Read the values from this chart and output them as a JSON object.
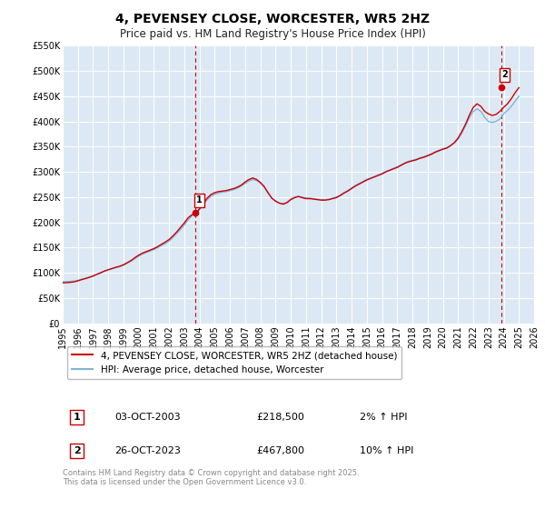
{
  "title": "4, PEVENSEY CLOSE, WORCESTER, WR5 2HZ",
  "subtitle": "Price paid vs. HM Land Registry's House Price Index (HPI)",
  "background_color": "#ffffff",
  "plot_bg_color": "#dce9f5",
  "grid_color": "#ffffff",
  "hpi_color": "#7fb3d9",
  "price_color": "#cc0000",
  "ylim": [
    0,
    550000
  ],
  "xlim_start": 1995.0,
  "xlim_end": 2026.0,
  "yticks": [
    0,
    50000,
    100000,
    150000,
    200000,
    250000,
    300000,
    350000,
    400000,
    450000,
    500000,
    550000
  ],
  "ytick_labels": [
    "£0",
    "£50K",
    "£100K",
    "£150K",
    "£200K",
    "£250K",
    "£300K",
    "£350K",
    "£400K",
    "£450K",
    "£500K",
    "£550K"
  ],
  "xticks": [
    1995,
    1996,
    1997,
    1998,
    1999,
    2000,
    2001,
    2002,
    2003,
    2004,
    2005,
    2006,
    2007,
    2008,
    2009,
    2010,
    2011,
    2012,
    2013,
    2014,
    2015,
    2016,
    2017,
    2018,
    2019,
    2020,
    2021,
    2022,
    2023,
    2024,
    2025,
    2026
  ],
  "sale1_x": 2003.75,
  "sale1_y": 218500,
  "sale1_label": "1",
  "sale2_x": 2023.82,
  "sale2_y": 467800,
  "sale2_label": "2",
  "vline1_x": 2003.75,
  "vline2_x": 2023.82,
  "legend_line1": "4, PEVENSEY CLOSE, WORCESTER, WR5 2HZ (detached house)",
  "legend_line2": "HPI: Average price, detached house, Worcester",
  "table_row1_num": "1",
  "table_row1_date": "03-OCT-2003",
  "table_row1_price": "£218,500",
  "table_row1_hpi": "2% ↑ HPI",
  "table_row2_num": "2",
  "table_row2_date": "26-OCT-2023",
  "table_row2_price": "£467,800",
  "table_row2_hpi": "10% ↑ HPI",
  "footer": "Contains HM Land Registry data © Crown copyright and database right 2025.\nThis data is licensed under the Open Government Licence v3.0.",
  "title_fontsize": 10,
  "subtitle_fontsize": 8.5,
  "tick_fontsize": 7,
  "legend_fontsize": 7.5,
  "table_fontsize": 8,
  "footer_fontsize": 6,
  "hpi_data_x": [
    1995.0,
    1995.25,
    1995.5,
    1995.75,
    1996.0,
    1996.25,
    1996.5,
    1996.75,
    1997.0,
    1997.25,
    1997.5,
    1997.75,
    1998.0,
    1998.25,
    1998.5,
    1998.75,
    1999.0,
    1999.25,
    1999.5,
    1999.75,
    2000.0,
    2000.25,
    2000.5,
    2000.75,
    2001.0,
    2001.25,
    2001.5,
    2001.75,
    2002.0,
    2002.25,
    2002.5,
    2002.75,
    2003.0,
    2003.25,
    2003.5,
    2003.75,
    2004.0,
    2004.25,
    2004.5,
    2004.75,
    2005.0,
    2005.25,
    2005.5,
    2005.75,
    2006.0,
    2006.25,
    2006.5,
    2006.75,
    2007.0,
    2007.25,
    2007.5,
    2007.75,
    2008.0,
    2008.25,
    2008.5,
    2008.75,
    2009.0,
    2009.25,
    2009.5,
    2009.75,
    2010.0,
    2010.25,
    2010.5,
    2010.75,
    2011.0,
    2011.25,
    2011.5,
    2011.75,
    2012.0,
    2012.25,
    2012.5,
    2012.75,
    2013.0,
    2013.25,
    2013.5,
    2013.75,
    2014.0,
    2014.25,
    2014.5,
    2014.75,
    2015.0,
    2015.25,
    2015.5,
    2015.75,
    2016.0,
    2016.25,
    2016.5,
    2016.75,
    2017.0,
    2017.25,
    2017.5,
    2017.75,
    2018.0,
    2018.25,
    2018.5,
    2018.75,
    2019.0,
    2019.25,
    2019.5,
    2019.75,
    2020.0,
    2020.25,
    2020.5,
    2020.75,
    2021.0,
    2021.25,
    2021.5,
    2021.75,
    2022.0,
    2022.25,
    2022.5,
    2022.75,
    2023.0,
    2023.25,
    2023.5,
    2023.75,
    2024.0,
    2024.25,
    2024.5,
    2024.75,
    2025.0
  ],
  "hpi_data_y": [
    82000,
    82500,
    83000,
    83500,
    85000,
    87000,
    89000,
    91000,
    94000,
    97000,
    100000,
    103000,
    106000,
    108000,
    110000,
    112000,
    115000,
    119000,
    123000,
    128000,
    133000,
    137000,
    140000,
    143000,
    146000,
    150000,
    154000,
    158000,
    163000,
    170000,
    178000,
    186000,
    195000,
    205000,
    213000,
    218000,
    225000,
    235000,
    245000,
    252000,
    256000,
    258000,
    260000,
    261000,
    263000,
    265000,
    268000,
    272000,
    277000,
    282000,
    285000,
    283000,
    278000,
    270000,
    258000,
    248000,
    242000,
    238000,
    237000,
    240000,
    246000,
    250000,
    252000,
    250000,
    248000,
    248000,
    247000,
    246000,
    245000,
    245000,
    246000,
    248000,
    250000,
    254000,
    259000,
    263000,
    268000,
    273000,
    277000,
    281000,
    285000,
    288000,
    291000,
    294000,
    297000,
    301000,
    304000,
    307000,
    310000,
    314000,
    318000,
    321000,
    323000,
    325000,
    328000,
    330000,
    333000,
    336000,
    340000,
    343000,
    346000,
    348000,
    352000,
    357000,
    365000,
    377000,
    392000,
    408000,
    420000,
    425000,
    420000,
    408000,
    400000,
    398000,
    400000,
    405000,
    415000,
    422000,
    430000,
    440000,
    450000
  ],
  "price_data_x": [
    1995.0,
    1995.25,
    1995.5,
    1995.75,
    1996.0,
    1996.25,
    1996.5,
    1996.75,
    1997.0,
    1997.25,
    1997.5,
    1997.75,
    1998.0,
    1998.25,
    1998.5,
    1998.75,
    1999.0,
    1999.25,
    1999.5,
    1999.75,
    2000.0,
    2000.25,
    2000.5,
    2000.75,
    2001.0,
    2001.25,
    2001.5,
    2001.75,
    2002.0,
    2002.25,
    2002.5,
    2002.75,
    2003.0,
    2003.25,
    2003.5,
    2003.75,
    2004.0,
    2004.25,
    2004.5,
    2004.75,
    2005.0,
    2005.25,
    2005.5,
    2005.75,
    2006.0,
    2006.25,
    2006.5,
    2006.75,
    2007.0,
    2007.25,
    2007.5,
    2007.75,
    2008.0,
    2008.25,
    2008.5,
    2008.75,
    2009.0,
    2009.25,
    2009.5,
    2009.75,
    2010.0,
    2010.25,
    2010.5,
    2010.75,
    2011.0,
    2011.25,
    2011.5,
    2011.75,
    2012.0,
    2012.25,
    2012.5,
    2012.75,
    2013.0,
    2013.25,
    2013.5,
    2013.75,
    2014.0,
    2014.25,
    2014.5,
    2014.75,
    2015.0,
    2015.25,
    2015.5,
    2015.75,
    2016.0,
    2016.25,
    2016.5,
    2016.75,
    2017.0,
    2017.25,
    2017.5,
    2017.75,
    2018.0,
    2018.25,
    2018.5,
    2018.75,
    2019.0,
    2019.25,
    2019.5,
    2019.75,
    2020.0,
    2020.25,
    2020.5,
    2020.75,
    2021.0,
    2021.25,
    2021.5,
    2021.75,
    2022.0,
    2022.25,
    2022.5,
    2022.75,
    2023.0,
    2023.25,
    2023.5,
    2023.75,
    2024.0,
    2024.25,
    2024.5,
    2024.75,
    2025.0
  ],
  "price_data_y": [
    80000,
    80500,
    81000,
    82000,
    84000,
    86500,
    88500,
    91000,
    93500,
    97000,
    100000,
    103500,
    106000,
    108500,
    111000,
    113000,
    116000,
    120000,
    124500,
    130000,
    135000,
    139000,
    142000,
    145000,
    148000,
    152000,
    156500,
    161000,
    166000,
    173000,
    181000,
    190000,
    199000,
    209000,
    215000,
    218500,
    227000,
    238000,
    248000,
    255000,
    259000,
    261000,
    262000,
    263000,
    265000,
    267000,
    270000,
    274000,
    280000,
    285000,
    288000,
    285000,
    279000,
    271000,
    259000,
    248000,
    242000,
    238000,
    236000,
    239000,
    245000,
    249000,
    251000,
    249000,
    247000,
    247000,
    246000,
    245000,
    244000,
    244000,
    245000,
    247000,
    249000,
    253000,
    258000,
    262000,
    267000,
    272000,
    276000,
    280000,
    284000,
    287000,
    290000,
    293000,
    296000,
    300000,
    303000,
    306000,
    309000,
    313000,
    317000,
    320000,
    322000,
    324000,
    327000,
    329000,
    332000,
    335000,
    339000,
    342000,
    345000,
    347000,
    352000,
    358000,
    367000,
    380000,
    395000,
    413000,
    428000,
    435000,
    430000,
    420000,
    415000,
    412000,
    414000,
    420000,
    428000,
    435000,
    445000,
    457000,
    467000
  ]
}
